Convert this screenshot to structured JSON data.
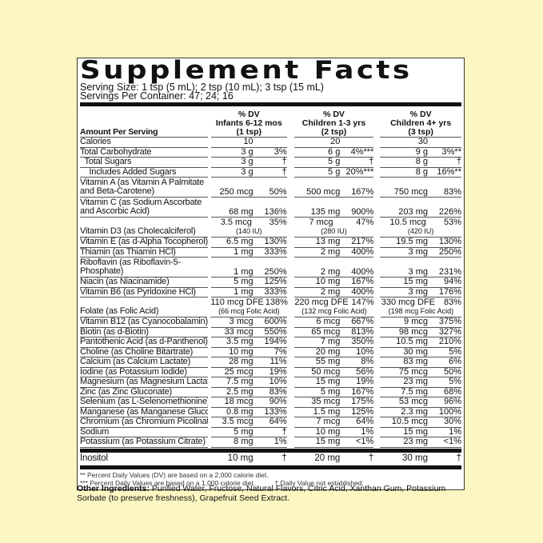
{
  "title": "Supplement Facts",
  "serving_size": "Serving Size: 1 tsp (5 mL); 2 tsp (10 mL); 3 tsp (15 mL)",
  "servings_per_container": "Servings Per Container: 47; 24; 16",
  "header": {
    "amount_per_serving": "Amount Per Serving",
    "columns": [
      {
        "dv": "% DV",
        "group": "Infants 6-12 mos",
        "serving": "(1  tsp)"
      },
      {
        "dv": "% DV",
        "group": "Children 1-3 yrs",
        "serving": "(2 tsp)"
      },
      {
        "dv": "% DV",
        "group": "Children 4+ yrs",
        "serving": "(3 tsp)"
      }
    ]
  },
  "rows": [
    {
      "label": "Calories",
      "v": [
        [
          "10",
          ""
        ],
        [
          "20",
          ""
        ],
        [
          "30",
          ""
        ]
      ]
    },
    {
      "label": "Total Carbohydrate",
      "v": [
        [
          "3 g",
          "3%"
        ],
        [
          "6 g",
          "4%***"
        ],
        [
          "9 g",
          "3%**"
        ]
      ]
    },
    {
      "label": "  Total Sugars",
      "v": [
        [
          "3 g",
          "†"
        ],
        [
          "5 g",
          "†"
        ],
        [
          "8 g",
          "†"
        ]
      ]
    },
    {
      "label": "    Includes Added Sugars",
      "v": [
        [
          "3 g",
          "†"
        ],
        [
          "5 g",
          "20%***"
        ],
        [
          "8 g",
          "16%**"
        ]
      ]
    },
    {
      "label": "Vitamin A (as Vitamin A Palmitate and Beta-Carotene)",
      "v": [
        [
          "250 mcg",
          "50%"
        ],
        [
          "500 mcg",
          "167%"
        ],
        [
          "750 mcg",
          "83%"
        ]
      ]
    },
    {
      "label": "Vitamin C (as Sodium Ascorbate and Ascorbic Acid)",
      "v": [
        [
          "68 mg",
          "136%"
        ],
        [
          "135 mg",
          "900%"
        ],
        [
          "203 mg",
          "226%"
        ]
      ]
    },
    {
      "label": "Vitamin D3  (as Cholecalciferol)",
      "v": [
        [
          "3.5 mcg",
          "35%",
          "(140 IU)"
        ],
        [
          "7 mcg",
          "47%",
          "(280 IU)"
        ],
        [
          "10.5 mcg",
          "53%",
          "(420 IU)"
        ]
      ]
    },
    {
      "label": "Vitamin E (as d-Alpha Tocopherol)",
      "v": [
        [
          "6.5 mg",
          "130%"
        ],
        [
          "13 mg",
          "217%"
        ],
        [
          "19.5 mg",
          "130%"
        ]
      ]
    },
    {
      "label": "Thiamin (as Thiamin HCl)",
      "v": [
        [
          "1 mg",
          "333%"
        ],
        [
          "2 mg",
          "400%"
        ],
        [
          "3 mg",
          "250%"
        ]
      ]
    },
    {
      "label": "Riboflavin (as Riboflavin-5-Phosphate)",
      "v": [
        [
          "1 mg",
          "250%"
        ],
        [
          "2 mg",
          "400%"
        ],
        [
          "3 mg",
          "231%"
        ]
      ]
    },
    {
      "label": "Niacin (as Niacinamide)",
      "v": [
        [
          "5 mg",
          "125%"
        ],
        [
          "10 mg",
          "167%"
        ],
        [
          "15 mg",
          "94%"
        ]
      ]
    },
    {
      "label": "Vitamin B6 (as Pyridoxine HCl)",
      "v": [
        [
          "1 mg",
          "333%"
        ],
        [
          "2 mg",
          "400%"
        ],
        [
          "3 mg",
          "176%"
        ]
      ]
    },
    {
      "label": "Folate (as Folic Acid)",
      "v": [
        [
          "110 mcg DFE",
          "138%",
          "(66 mcg Folic Acid)"
        ],
        [
          "220 mcg DFE",
          "147%",
          "(132 mcg Folic Acid)"
        ],
        [
          "330 mcg DFE",
          "83%",
          "(198 mcg Folic Acid)"
        ]
      ]
    },
    {
      "label": "Vitamin B12 (as Cyanocobalamin)",
      "v": [
        [
          "3 mcg",
          "600%"
        ],
        [
          "6 mcg",
          "667%"
        ],
        [
          "9 mcg",
          "375%"
        ]
      ]
    },
    {
      "label": "Biotin (as d-Biotin)",
      "v": [
        [
          "33 mcg",
          "550%"
        ],
        [
          "65 mcg",
          "813%"
        ],
        [
          "98 mcg",
          "327%"
        ]
      ]
    },
    {
      "label": "Pantothenic Acid (as d-Panthenol)",
      "v": [
        [
          "3.5 mg",
          "194%"
        ],
        [
          "7 mg",
          "350%"
        ],
        [
          "10.5 mg",
          "210%"
        ]
      ]
    },
    {
      "label": "Choline (as Choline Bitartrate)",
      "v": [
        [
          "10 mg",
          "7%"
        ],
        [
          "20 mg",
          "10%"
        ],
        [
          "30 mg",
          "5%"
        ]
      ]
    },
    {
      "label": "Calcium (as Calcium Lactate)",
      "v": [
        [
          "28 mg",
          "11%"
        ],
        [
          "55 mg",
          "8%"
        ],
        [
          "83 mg",
          "6%"
        ]
      ]
    },
    {
      "label": "Iodine (as Potassium Iodide)",
      "v": [
        [
          "25 mcg",
          "19%"
        ],
        [
          "50 mcg",
          "56%"
        ],
        [
          "75 mcg",
          "50%"
        ]
      ]
    },
    {
      "label": "Magnesium (as Magnesium Lactate)",
      "v": [
        [
          "7.5 mg",
          "10%"
        ],
        [
          "15 mg",
          "19%"
        ],
        [
          "23 mg",
          "5%"
        ]
      ]
    },
    {
      "label": "Zinc (as Zinc Gluconate)",
      "v": [
        [
          "2.5 mg",
          "83%"
        ],
        [
          "5 mg",
          "167%"
        ],
        [
          "7.5 mg",
          "68%"
        ]
      ]
    },
    {
      "label": "Selenium (as L-Selenomethionine)",
      "v": [
        [
          "18 mcg",
          "90%"
        ],
        [
          "35 mcg",
          "175%"
        ],
        [
          "53 mcg",
          "96%"
        ]
      ]
    },
    {
      "label": "Manganese (as Manganese Gluconate)",
      "v": [
        [
          "0.8 mg",
          "133%"
        ],
        [
          "1.5 mg",
          "125%"
        ],
        [
          "2.3 mg",
          "100%"
        ]
      ]
    },
    {
      "label": "Chromium (as Chromium Picolinate)",
      "v": [
        [
          "3.5 mcg",
          "64%"
        ],
        [
          "7 mcg",
          "64%"
        ],
        [
          "10.5 mcg",
          "30%"
        ]
      ]
    },
    {
      "label": "Sodium",
      "v": [
        [
          "5 mg",
          "†"
        ],
        [
          "10 mg",
          "1%"
        ],
        [
          "15 mg",
          "1%"
        ]
      ]
    },
    {
      "label": "Potassium (as Potassium Citrate)",
      "v": [
        [
          "8 mg",
          "1%"
        ],
        [
          "15 mg",
          "<1%"
        ],
        [
          "23 mg",
          "<1%"
        ]
      ]
    }
  ],
  "inositol": {
    "label": "Inositol",
    "v": [
      [
        "10 mg",
        "†"
      ],
      [
        "20 mg",
        "†"
      ],
      [
        "30 mg",
        "†"
      ]
    ]
  },
  "footnotes": {
    "dv2000": "** Percent Daily Values (DV) are based on a 2,000 calorie diet.",
    "dv1000": "*** Percent Daily Values are based on a 1,000 calorie diet.",
    "dagger": "† Daily Value not established."
  },
  "other_ingredients": {
    "heading": "Other Ingredients:",
    "text": " Purified Water, Fructose, Natural Flavors, Citric Acid, Xanthan Gum, Potassium Sorbate (to preserve freshness), Grapefruit Seed Extract."
  },
  "colors": {
    "background": "#fbf6c2",
    "label_background": "#ffffff",
    "rule": "#111111"
  }
}
